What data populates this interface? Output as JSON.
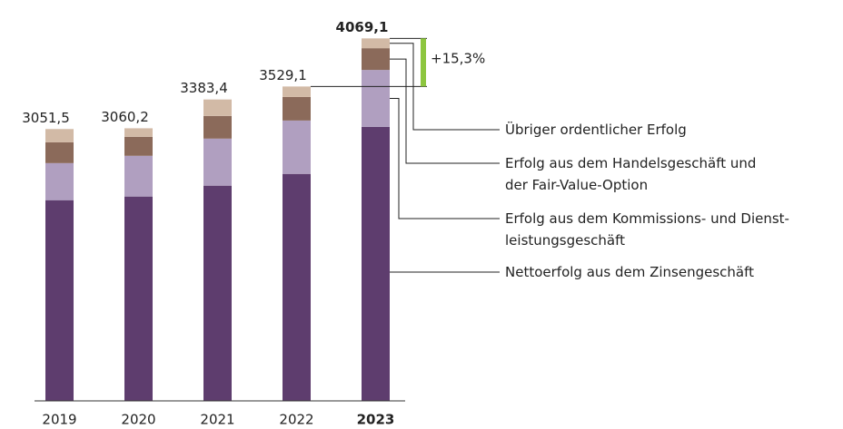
{
  "chart_data": {
    "type": "stacked_bar",
    "categories": [
      "2019",
      "2020",
      "2021",
      "2022",
      "2023"
    ],
    "highlight_category": "2023",
    "series": [
      {
        "name": "Nettoerfolg aus dem Zinsengeschäft",
        "color": "#5e3d6e",
        "values": [
          2253,
          2294,
          2416,
          2548,
          3076
        ]
      },
      {
        "name": "Erfolg aus dem Kommissions- und Dienst-\nleistungsgeschäft",
        "color": "#b09fc0",
        "values": [
          416,
          457,
          528,
          599,
          639
        ]
      },
      {
        "name": "Erfolg aus dem Handelsgeschäft und\nder Fair-Value-Option",
        "color": "#8b6a5a",
        "values": [
          233,
          213,
          254,
          264,
          244
        ]
      },
      {
        "name": "Übriger ordentlicher Erfolg",
        "color": "#d2baa6",
        "values": [
          149.5,
          96.2,
          185.4,
          118.1,
          110.1
        ]
      }
    ],
    "totals": {
      "values": [
        3051.5,
        3060.2,
        3383.4,
        3529.1,
        4069.1
      ],
      "value_labels": [
        "3051,5",
        "3060,2",
        "3383,4",
        "3529,1",
        "4069,1"
      ]
    },
    "change_annotation": {
      "text": "+15,3%",
      "color": "#8dc63f"
    },
    "ylim": [
      0,
      4500
    ]
  }
}
